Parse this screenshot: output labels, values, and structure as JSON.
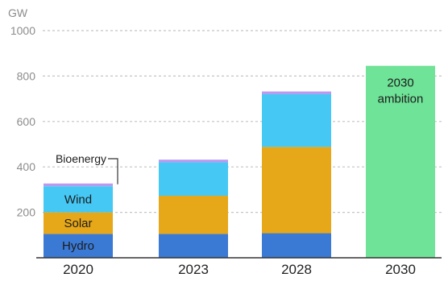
{
  "chart_data": {
    "type": "bar",
    "stacked": true,
    "y_unit_label": "GW",
    "ylim": [
      0,
      1000
    ],
    "yticks": [
      200,
      400,
      600,
      800,
      1000
    ],
    "grid": true,
    "categories": [
      "2020",
      "2023",
      "2028",
      "2030"
    ],
    "series": [
      {
        "name": "Hydro",
        "color": "#3a79d4",
        "values": [
          105,
          105,
          108,
          0
        ]
      },
      {
        "name": "Solar",
        "color": "#e6a718",
        "values": [
          95,
          168,
          380,
          0
        ]
      },
      {
        "name": "Wind",
        "color": "#45c8f4",
        "values": [
          115,
          147,
          232,
          0
        ]
      },
      {
        "name": "Bioenergy",
        "color": "#b89af0",
        "values": [
          12,
          12,
          12,
          0
        ]
      },
      {
        "name": "2030 ambition",
        "color": "#6fe397",
        "values": [
          0,
          0,
          0,
          845
        ]
      }
    ],
    "segment_labels": {
      "hydro": "Hydro",
      "solar": "Solar",
      "wind": "Wind",
      "bioenergy": "Bioenergy"
    },
    "ambition_label_lines": [
      "2030",
      "ambition"
    ]
  }
}
